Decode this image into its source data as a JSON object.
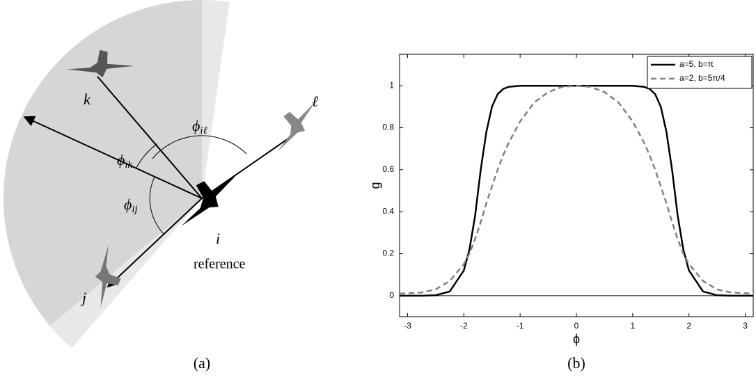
{
  "diagram": {
    "bird_labels": [
      "k",
      "ℓ",
      "j",
      "i"
    ],
    "reference": "reference",
    "angles": [
      {
        "symbol": "ϕ",
        "subscript": "iℓ"
      },
      {
        "symbol": "ϕ",
        "subscript": "ik"
      },
      {
        "symbol": "ϕ",
        "subscript": "ij"
      }
    ]
  },
  "captions": [
    "(a)",
    "(b)"
  ],
  "chart_data": {
    "type": "line",
    "xlabel": "ϕ",
    "ylabel": "g",
    "x": [
      -3.14,
      -2.75,
      -2.5,
      -2.25,
      -2,
      -1.9,
      -1.8,
      -1.7,
      -1.6,
      -1.5,
      -1.4,
      -1.3,
      -1.2,
      -1,
      -0.75,
      -0.5,
      -0.25,
      0,
      0.25,
      0.5,
      0.75,
      1,
      1.2,
      1.3,
      1.4,
      1.5,
      1.6,
      1.7,
      1.8,
      1.9,
      2,
      2.25,
      2.5,
      2.75,
      3.14
    ],
    "series": [
      {
        "name": "a=5, b=π",
        "color": "#000000",
        "dash": false,
        "values": [
          0,
          0,
          0.002,
          0.02,
          0.12,
          0.22,
          0.38,
          0.6,
          0.78,
          0.9,
          0.96,
          0.985,
          0.995,
          1,
          1,
          1,
          1,
          1,
          1,
          1,
          1,
          1,
          0.995,
          0.985,
          0.96,
          0.9,
          0.78,
          0.6,
          0.38,
          0.22,
          0.12,
          0.02,
          0.002,
          0,
          0
        ]
      },
      {
        "name": "a=2, b=5π/4",
        "color": "#808080",
        "dash": true,
        "values": [
          0.01,
          0.015,
          0.03,
          0.07,
          0.15,
          0.2,
          0.27,
          0.35,
          0.44,
          0.52,
          0.6,
          0.67,
          0.73,
          0.83,
          0.92,
          0.97,
          0.995,
          1,
          0.995,
          0.97,
          0.92,
          0.83,
          0.73,
          0.67,
          0.6,
          0.52,
          0.44,
          0.35,
          0.27,
          0.2,
          0.15,
          0.07,
          0.03,
          0.015,
          0.01
        ]
      }
    ],
    "xlim": [
      -3.1416,
      3.1416
    ],
    "ylim": [
      -0.1,
      1.15
    ],
    "xticks": [
      -3,
      -2,
      -1,
      0,
      1,
      2,
      3
    ],
    "yticks": [
      0,
      0.2,
      0.4,
      0.6,
      0.8,
      1
    ],
    "zero_line": true,
    "legend": "top-right"
  }
}
